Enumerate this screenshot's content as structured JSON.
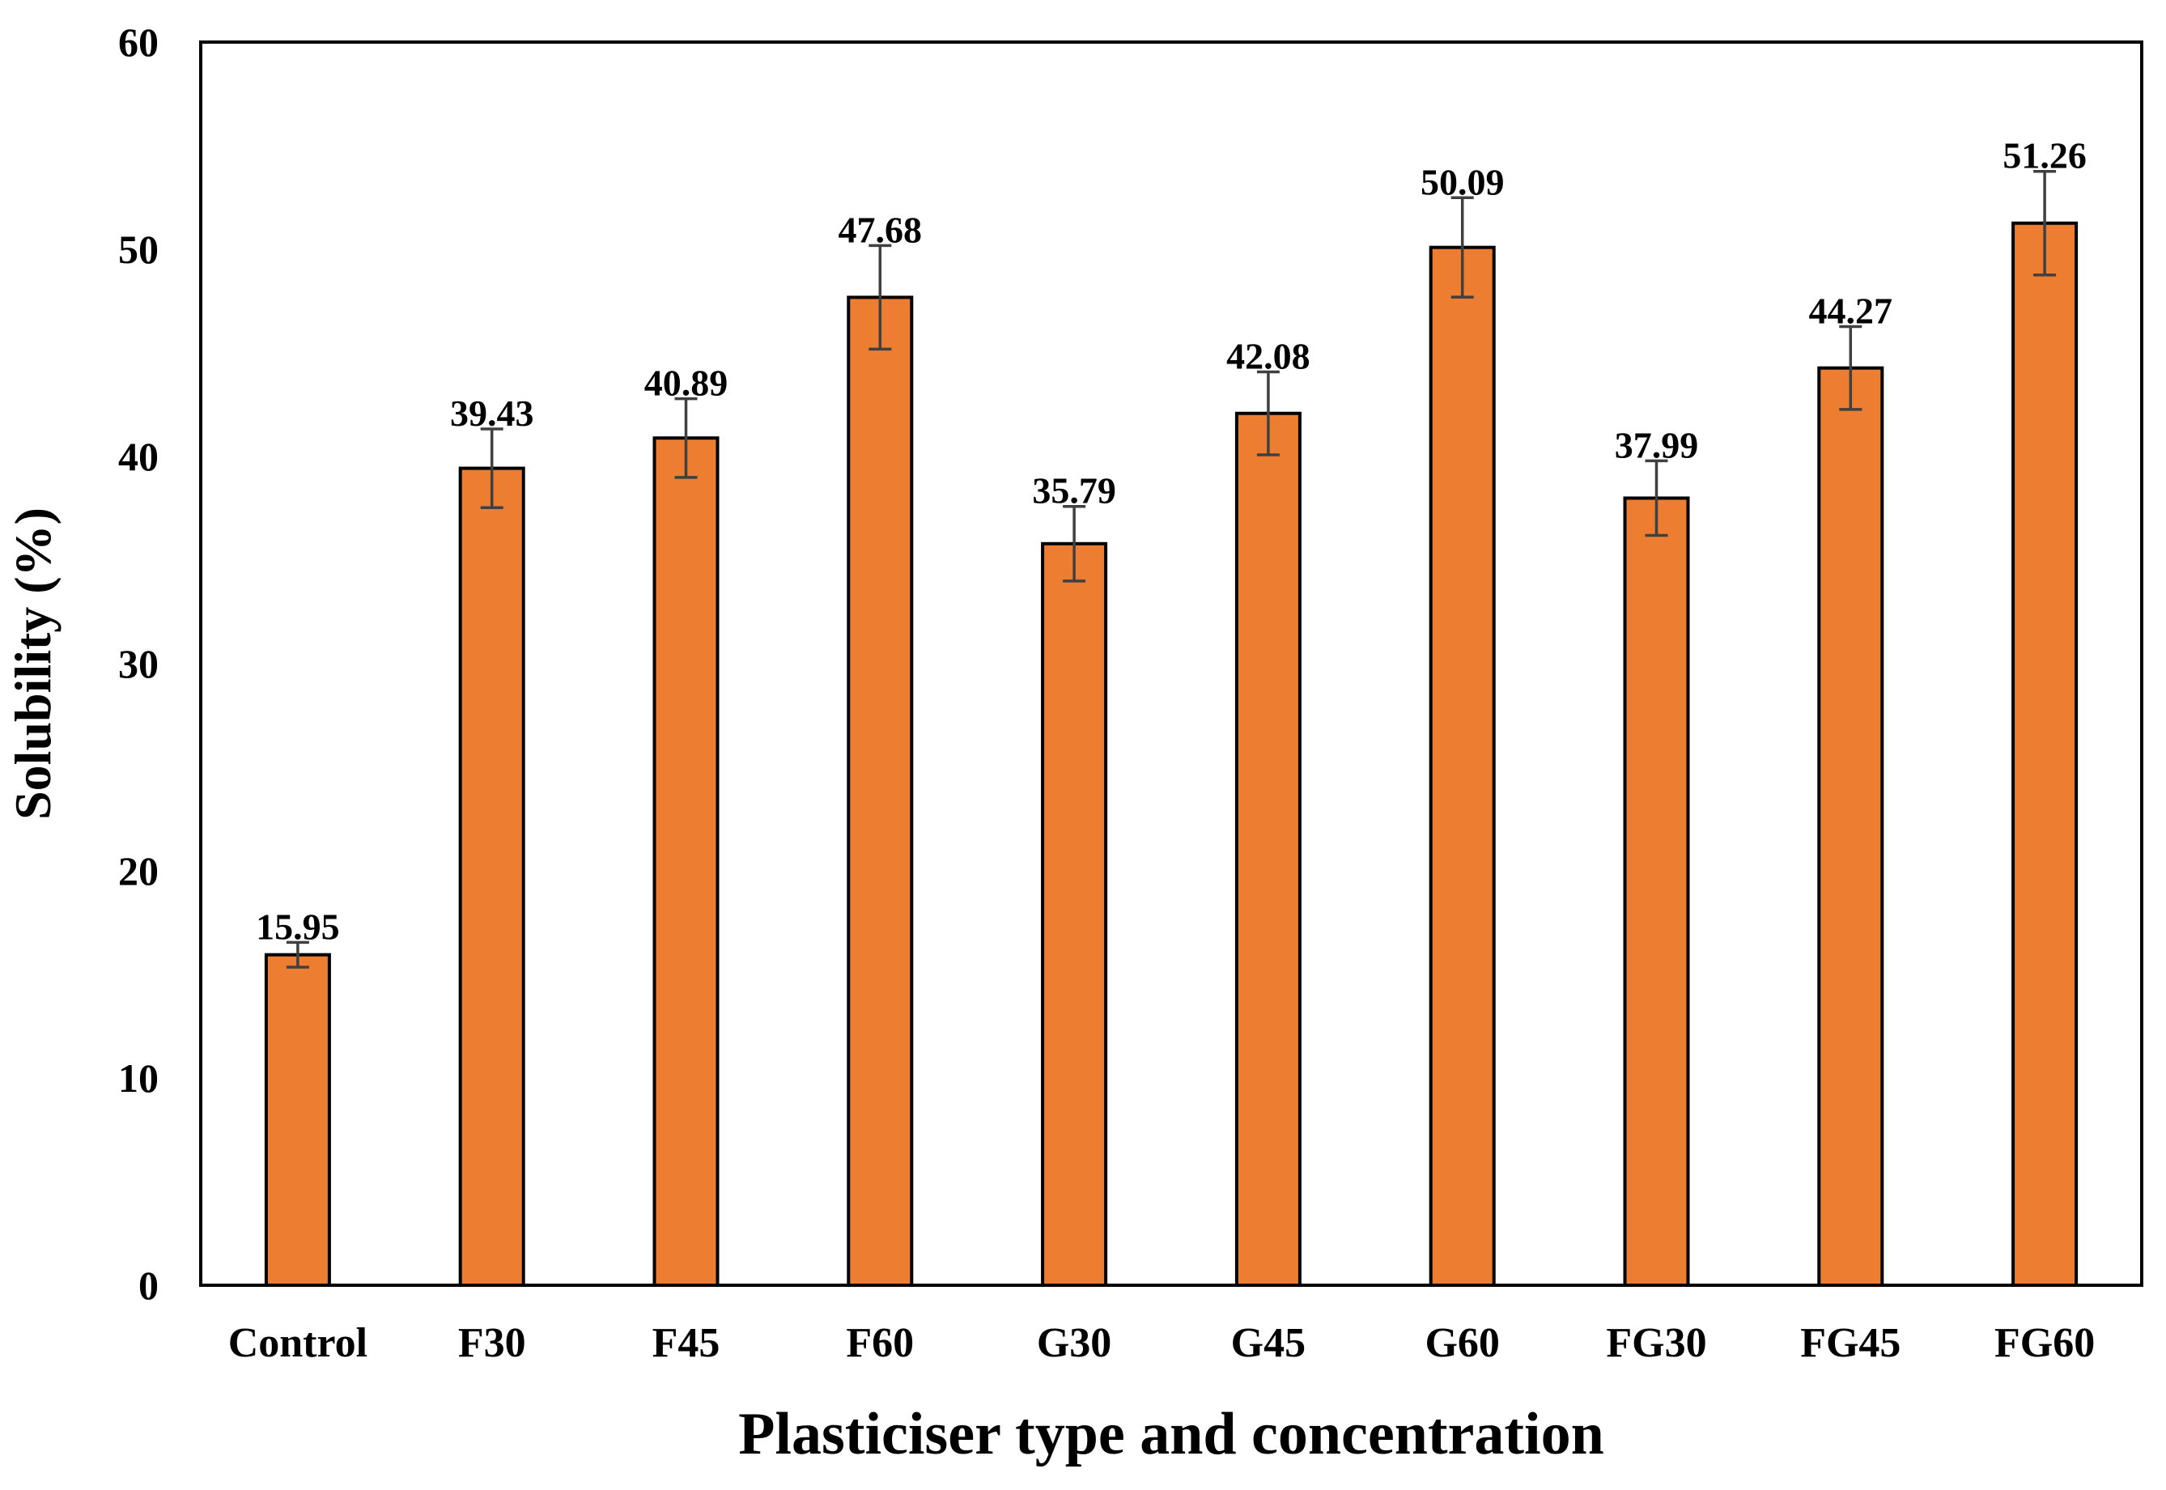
{
  "chart_data": {
    "type": "bar",
    "title": "",
    "xlabel": "Plasticiser type and concentration",
    "ylabel": "Solubility (%)",
    "ylim": [
      0,
      60
    ],
    "yticks": [
      0,
      10,
      20,
      30,
      40,
      50,
      60
    ],
    "grid": false,
    "legend": "none",
    "categories": [
      "Control",
      "F30",
      "F45",
      "F60",
      "G30",
      "G45",
      "G60",
      "FG30",
      "FG45",
      "FG60"
    ],
    "series": [
      {
        "name": "Solubility",
        "values": [
          15.95,
          39.43,
          40.89,
          47.68,
          35.79,
          42.08,
          50.09,
          37.99,
          44.27,
          51.26
        ],
        "errors": [
          0.6,
          1.9,
          1.9,
          2.5,
          1.8,
          2.0,
          2.4,
          1.8,
          2.0,
          2.5
        ],
        "labels": [
          "15.95",
          "39.43",
          "40.89",
          "47.68",
          "35.79",
          "42.08",
          "50.09",
          "37.99",
          "44.27",
          "51.26"
        ]
      }
    ],
    "colors": {
      "bar_fill": "#ED7D31",
      "bar_stroke": "#000000",
      "error_bar": "#404040",
      "axis": "#000000"
    }
  }
}
